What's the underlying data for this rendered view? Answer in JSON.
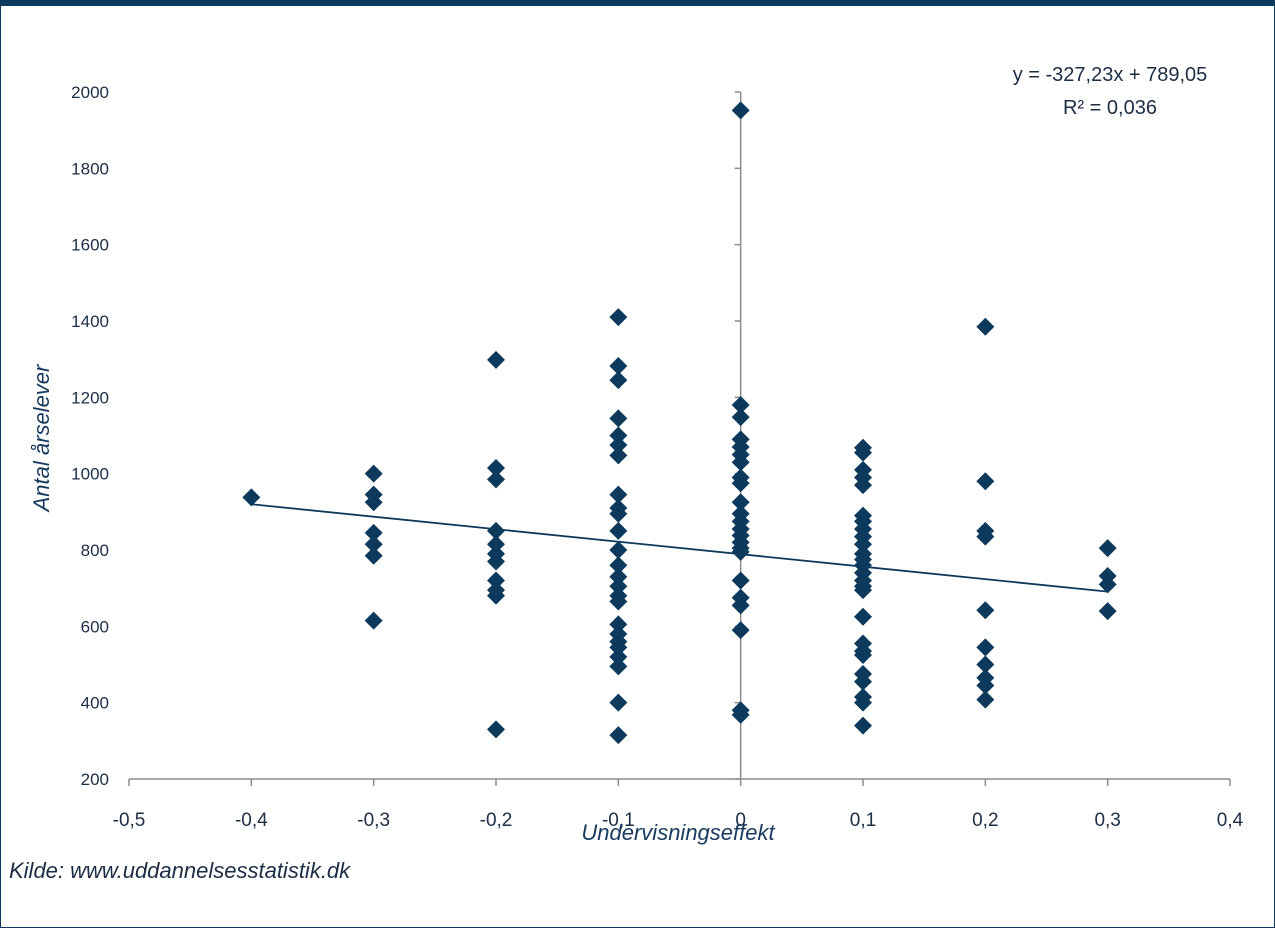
{
  "chart_data": {
    "type": "scatter",
    "xlabel": "Undervisningseffekt",
    "ylabel": "Antal årselever",
    "xlim": [
      -0.5,
      0.4
    ],
    "ylim": [
      200,
      2000
    ],
    "x_ticks": [
      "-0,5",
      "-0,4",
      "-0,3",
      "-0,2",
      "-0,1",
      "0",
      "0,1",
      "0,2",
      "0,3",
      "0,4"
    ],
    "y_ticks": [
      "200",
      "400",
      "600",
      "800",
      "1000",
      "1200",
      "1400",
      "1600",
      "1800",
      "2000"
    ],
    "grid": false,
    "marker": "diamond",
    "marker_color": "#0d3a5c",
    "line_color": "#0d3a5c",
    "trendline": {
      "slope": -327.23,
      "intercept": 789.05,
      "x_range": [
        -0.4,
        0.3
      ]
    },
    "equation": "y = -327,23x + 789,05",
    "r_squared": "R² = 0,036",
    "source": "Kilde: www.uddannelsesstatistik.dk",
    "points": [
      [
        -0.4,
        938
      ],
      [
        -0.3,
        1000
      ],
      [
        -0.3,
        945
      ],
      [
        -0.3,
        925
      ],
      [
        -0.3,
        845
      ],
      [
        -0.3,
        815
      ],
      [
        -0.3,
        785
      ],
      [
        -0.3,
        615
      ],
      [
        -0.2,
        1298
      ],
      [
        -0.2,
        1015
      ],
      [
        -0.2,
        985
      ],
      [
        -0.2,
        850
      ],
      [
        -0.2,
        815
      ],
      [
        -0.2,
        790
      ],
      [
        -0.2,
        770
      ],
      [
        -0.2,
        720
      ],
      [
        -0.2,
        695
      ],
      [
        -0.2,
        680
      ],
      [
        -0.2,
        330
      ],
      [
        -0.1,
        1410
      ],
      [
        -0.1,
        1282
      ],
      [
        -0.1,
        1245
      ],
      [
        -0.1,
        1145
      ],
      [
        -0.1,
        1100
      ],
      [
        -0.1,
        1075
      ],
      [
        -0.1,
        1048
      ],
      [
        -0.1,
        945
      ],
      [
        -0.1,
        910
      ],
      [
        -0.1,
        895
      ],
      [
        -0.1,
        850
      ],
      [
        -0.1,
        800
      ],
      [
        -0.1,
        760
      ],
      [
        -0.1,
        730
      ],
      [
        -0.1,
        705
      ],
      [
        -0.1,
        680
      ],
      [
        -0.1,
        665
      ],
      [
        -0.1,
        605
      ],
      [
        -0.1,
        580
      ],
      [
        -0.1,
        560
      ],
      [
        -0.1,
        545
      ],
      [
        -0.1,
        520
      ],
      [
        -0.1,
        495
      ],
      [
        -0.1,
        400
      ],
      [
        -0.1,
        315
      ],
      [
        0,
        1952
      ],
      [
        0,
        1180
      ],
      [
        0,
        1148
      ],
      [
        0,
        1090
      ],
      [
        0,
        1070
      ],
      [
        0,
        1050
      ],
      [
        0,
        1030
      ],
      [
        0,
        990
      ],
      [
        0,
        975
      ],
      [
        0,
        925
      ],
      [
        0,
        895
      ],
      [
        0,
        875
      ],
      [
        0,
        855
      ],
      [
        0,
        838
      ],
      [
        0,
        820
      ],
      [
        0,
        805
      ],
      [
        0,
        795
      ],
      [
        0,
        720
      ],
      [
        0,
        675
      ],
      [
        0,
        655
      ],
      [
        0,
        590
      ],
      [
        0,
        380
      ],
      [
        0,
        368
      ],
      [
        0.1,
        1068
      ],
      [
        0.1,
        1055
      ],
      [
        0.1,
        1010
      ],
      [
        0.1,
        990
      ],
      [
        0.1,
        970
      ],
      [
        0.1,
        890
      ],
      [
        0.1,
        875
      ],
      [
        0.1,
        855
      ],
      [
        0.1,
        835
      ],
      [
        0.1,
        815
      ],
      [
        0.1,
        790
      ],
      [
        0.1,
        775
      ],
      [
        0.1,
        760
      ],
      [
        0.1,
        740
      ],
      [
        0.1,
        720
      ],
      [
        0.1,
        705
      ],
      [
        0.1,
        695
      ],
      [
        0.1,
        625
      ],
      [
        0.1,
        555
      ],
      [
        0.1,
        535
      ],
      [
        0.1,
        525
      ],
      [
        0.1,
        475
      ],
      [
        0.1,
        455
      ],
      [
        0.1,
        415
      ],
      [
        0.1,
        400
      ],
      [
        0.1,
        340
      ],
      [
        0.2,
        1385
      ],
      [
        0.2,
        980
      ],
      [
        0.2,
        850
      ],
      [
        0.2,
        835
      ],
      [
        0.2,
        642
      ],
      [
        0.2,
        545
      ],
      [
        0.2,
        500
      ],
      [
        0.2,
        465
      ],
      [
        0.2,
        445
      ],
      [
        0.2,
        408
      ],
      [
        0.3,
        805
      ],
      [
        0.3,
        732
      ],
      [
        0.3,
        710
      ],
      [
        0.3,
        640
      ]
    ]
  }
}
